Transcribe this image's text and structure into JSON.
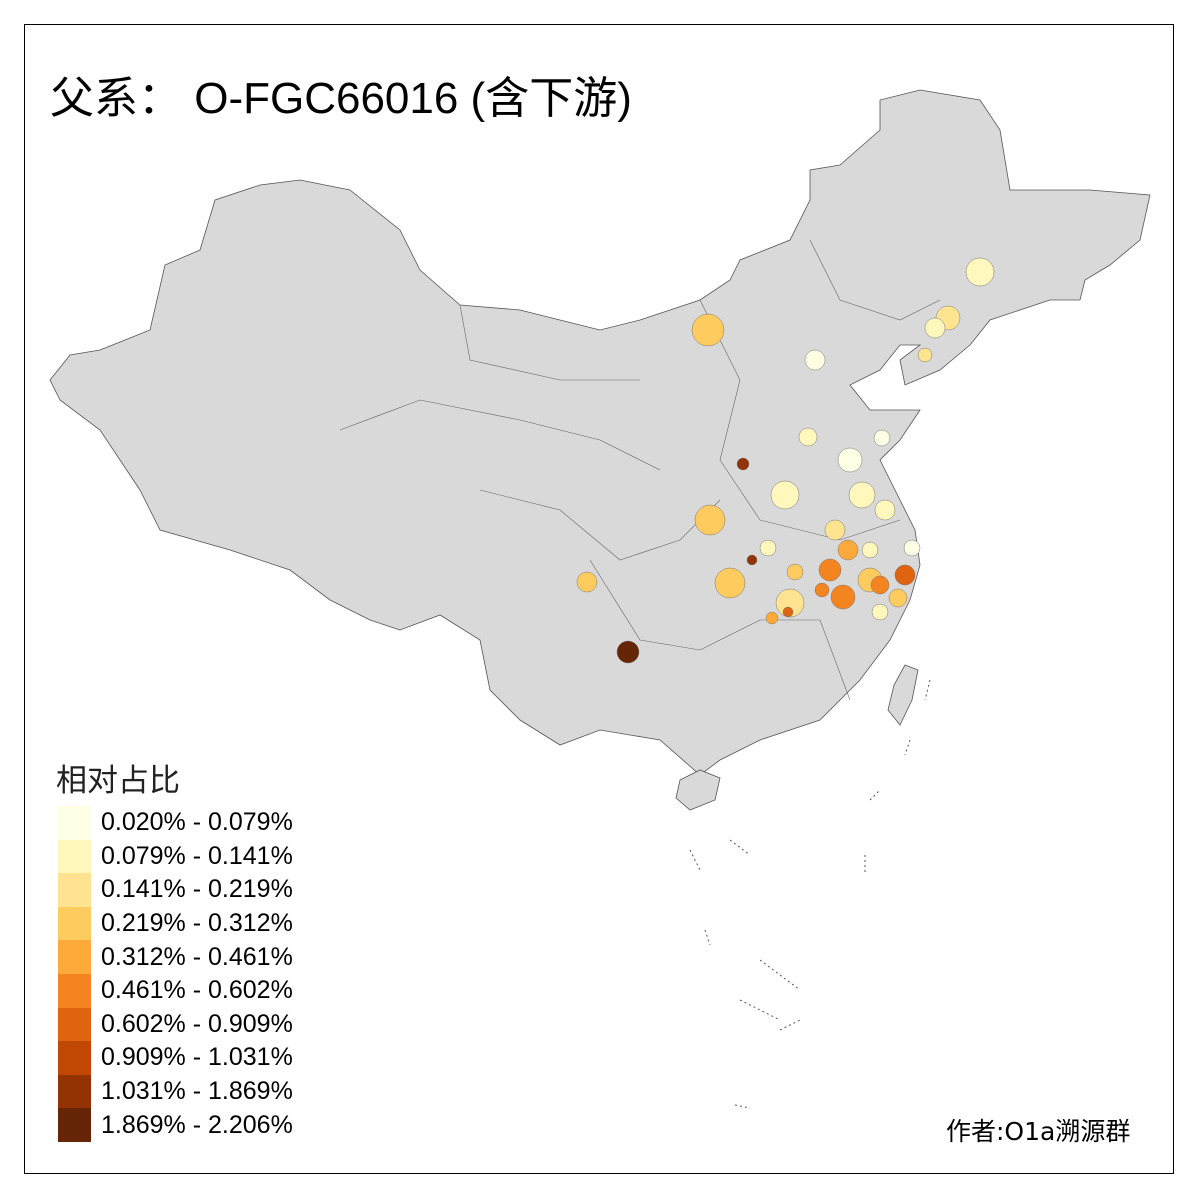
{
  "title": "父系： O-FGC66016 (含下游)",
  "legend": {
    "title": "相对占比",
    "items": [
      {
        "label": "0.020% - 0.079%",
        "color": "#FFFFE5"
      },
      {
        "label": "0.079% - 0.141%",
        "color": "#FFF7BC"
      },
      {
        "label": "0.141% - 0.219%",
        "color": "#FEE391"
      },
      {
        "label": "0.219% - 0.312%",
        "color": "#FECB5E"
      },
      {
        "label": "0.312% - 0.461%",
        "color": "#FEAA3A"
      },
      {
        "label": "0.461% - 0.602%",
        "color": "#F4841F"
      },
      {
        "label": "0.602% - 0.909%",
        "color": "#E0640F"
      },
      {
        "label": "0.909% - 1.031%",
        "color": "#C04803"
      },
      {
        "label": "1.031% - 1.869%",
        "color": "#933304"
      },
      {
        "label": "1.869% - 2.206%",
        "color": "#662506"
      }
    ]
  },
  "map": {
    "base_color": "#D9D9D9",
    "border_color": "#555555"
  },
  "credit": "作者:O1a溯源群"
}
